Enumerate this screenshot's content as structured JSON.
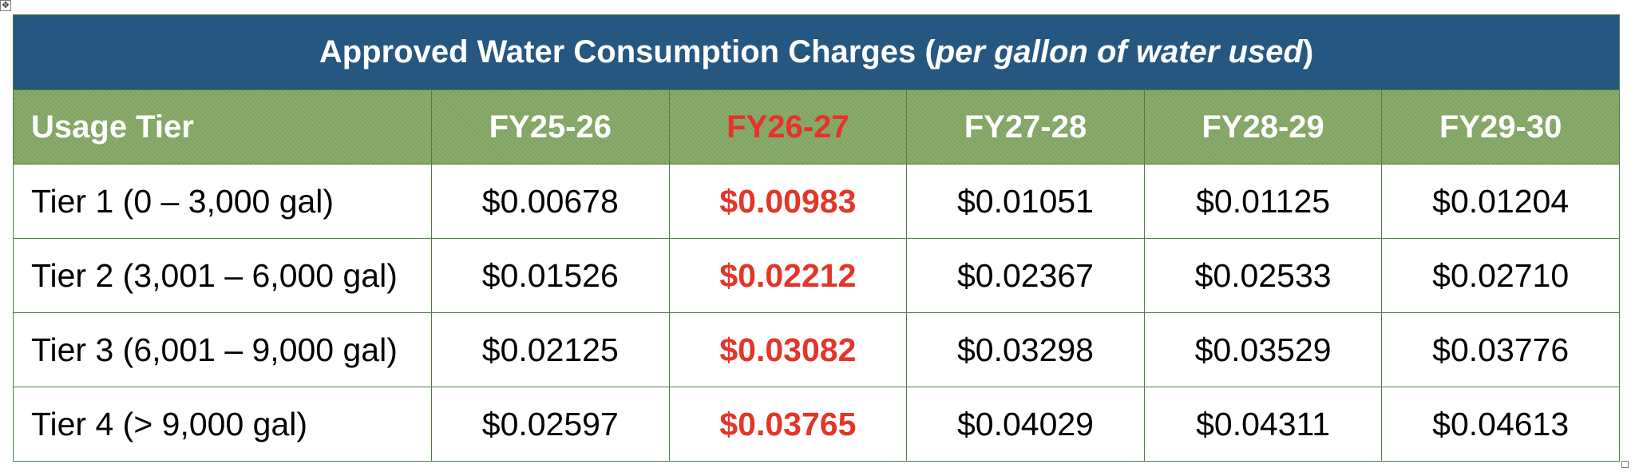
{
  "table": {
    "title_main": "Approved Water Consumption Charges (",
    "title_italic": "per gallon of water used",
    "title_end": ")",
    "header": {
      "tier": "Usage Tier",
      "years": [
        "FY25-26",
        "FY26-27",
        "FY27-28",
        "FY28-29",
        "FY29-30"
      ]
    },
    "highlight_color": "#e33528",
    "rows": [
      {
        "tier": "Tier 1 (0 – 3,000 gal)",
        "values": [
          "$0.00678",
          "$0.00983",
          "$0.01051",
          "$0.01125",
          "$0.01204"
        ]
      },
      {
        "tier": "Tier 2 (3,001 – 6,000 gal)",
        "values": [
          "$0.01526",
          "$0.02212",
          "$0.02367",
          "$0.02533",
          "$0.02710"
        ]
      },
      {
        "tier": "Tier 3 (6,001 – 9,000 gal)",
        "values": [
          "$0.02125",
          "$0.03082",
          "$0.03298",
          "$0.03529",
          "$0.03776"
        ]
      },
      {
        "tier": "Tier 4 (> 9,000 gal)",
        "values": [
          "$0.02597",
          "$0.03765",
          "$0.04029",
          "$0.04311",
          "$0.04613"
        ]
      }
    ]
  }
}
